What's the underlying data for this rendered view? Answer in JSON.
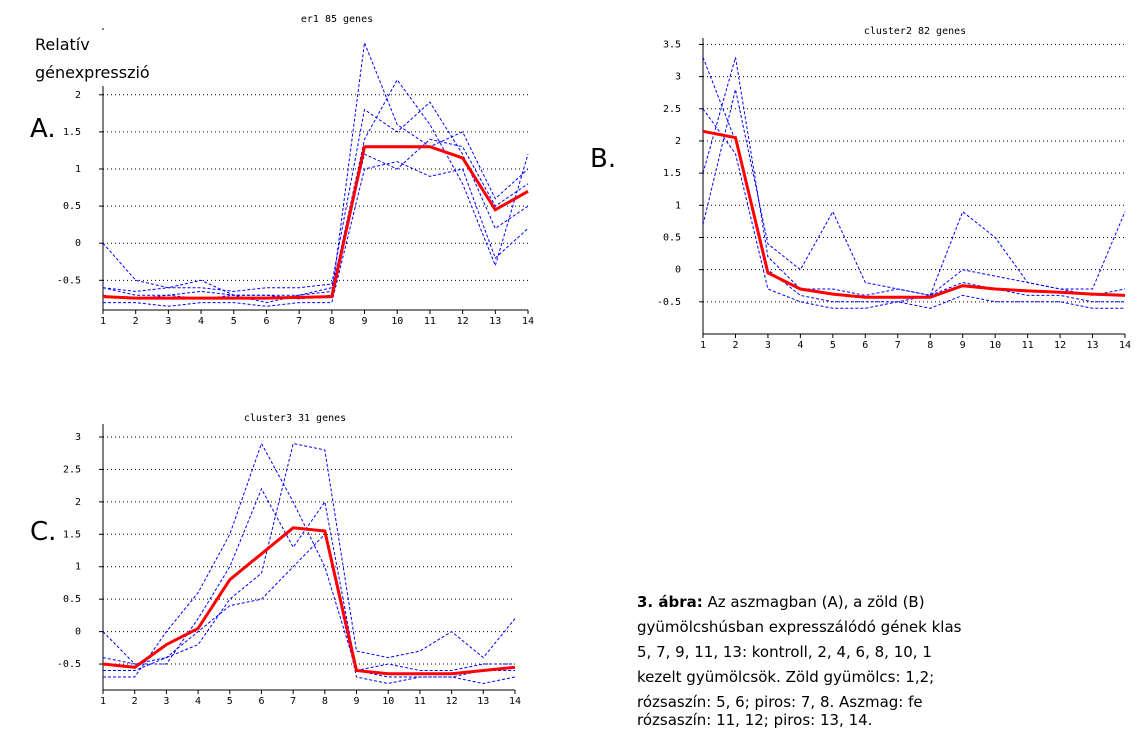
{
  "chart_data": [
    {
      "type": "line",
      "title": "er1  85 genes",
      "x": [
        1,
        2,
        3,
        4,
        5,
        6,
        7,
        8,
        9,
        10,
        11,
        12,
        13,
        14
      ],
      "xticks": [
        1,
        2,
        3,
        4,
        5,
        6,
        7,
        8,
        9,
        10,
        11,
        12,
        13,
        14
      ],
      "xlim": [
        1,
        14
      ],
      "ylim": [
        -0.9,
        2.9
      ],
      "yticks": [
        -0.5,
        0,
        0.5,
        1,
        1.5,
        2
      ],
      "grid": true,
      "series": [
        {
          "color": "#0000ff",
          "values": [
            -0.6,
            -0.65,
            -0.6,
            -0.6,
            -0.65,
            -0.6,
            -0.6,
            -0.55,
            1.8,
            1.5,
            1.9,
            1.2,
            0.2,
            0.5
          ]
        },
        {
          "color": "#0000ff",
          "values": [
            -0.8,
            -0.8,
            -0.85,
            -0.8,
            -0.8,
            -0.85,
            -0.8,
            -0.8,
            1.0,
            1.1,
            0.9,
            1.0,
            -0.2,
            0.2
          ]
        },
        {
          "color": "#0000ff",
          "values": [
            -0.7,
            -0.75,
            -0.7,
            -0.75,
            -0.7,
            -0.7,
            -0.75,
            -0.7,
            2.7,
            1.6,
            1.3,
            1.5,
            0.6,
            1.0
          ]
        },
        {
          "color": "#0000ff",
          "values": [
            -0.6,
            -0.7,
            -0.7,
            -0.65,
            -0.7,
            -0.7,
            -0.7,
            -0.65,
            1.4,
            2.2,
            1.6,
            0.8,
            -0.3,
            1.2
          ]
        },
        {
          "color": "#0000ff",
          "values": [
            0,
            -0.5,
            -0.6,
            -0.5,
            -0.7,
            -0.8,
            -0.7,
            -0.6,
            1.2,
            1.0,
            1.4,
            1.3,
            0.5,
            0.8
          ]
        },
        {
          "color": "#ff0000",
          "values": [
            -0.72,
            -0.74,
            -0.74,
            -0.74,
            -0.74,
            -0.74,
            -0.73,
            -0.72,
            1.3,
            1.3,
            1.3,
            1.15,
            0.45,
            0.7
          ]
        }
      ]
    },
    {
      "type": "line",
      "title": "cluster2  82 genes",
      "x": [
        1,
        2,
        3,
        4,
        5,
        6,
        7,
        8,
        9,
        10,
        11,
        12,
        13,
        14
      ],
      "xticks": [
        1,
        2,
        3,
        4,
        5,
        6,
        7,
        8,
        9,
        10,
        11,
        12,
        13,
        14
      ],
      "xlim": [
        1,
        14
      ],
      "ylim": [
        -1,
        3.6
      ],
      "yticks": [
        -0.5,
        0,
        0.5,
        1,
        1.5,
        2,
        2.5,
        3,
        3.5
      ],
      "grid": true,
      "series": [
        {
          "color": "#0000ff",
          "values": [
            3.3,
            2.0,
            0.0,
            -0.4,
            -0.5,
            -0.5,
            -0.5,
            -0.4,
            -0.2,
            -0.3,
            -0.4,
            -0.4,
            -0.5,
            -0.5
          ]
        },
        {
          "color": "#0000ff",
          "values": [
            1.5,
            3.3,
            0.2,
            -0.3,
            -0.3,
            -0.4,
            -0.3,
            -0.4,
            0.9,
            0.5,
            -0.2,
            -0.3,
            -0.4,
            -0.3
          ]
        },
        {
          "color": "#0000ff",
          "values": [
            2.5,
            1.8,
            -0.3,
            -0.5,
            -0.6,
            -0.6,
            -0.5,
            -0.6,
            -0.4,
            -0.5,
            -0.5,
            -0.5,
            -0.6,
            -0.6
          ]
        },
        {
          "color": "#0000ff",
          "values": [
            0.7,
            2.8,
            0.4,
            0.0,
            0.9,
            -0.2,
            -0.3,
            -0.4,
            0.0,
            -0.1,
            -0.2,
            -0.3,
            -0.3,
            0.9
          ]
        },
        {
          "color": "#ff0000",
          "values": [
            2.15,
            2.05,
            -0.05,
            -0.3,
            -0.38,
            -0.43,
            -0.43,
            -0.43,
            -0.25,
            -0.3,
            -0.33,
            -0.35,
            -0.38,
            -0.4
          ]
        }
      ]
    },
    {
      "type": "line",
      "title": "cluster3  31 genes",
      "x": [
        1,
        2,
        3,
        4,
        5,
        6,
        7,
        8,
        9,
        10,
        11,
        12,
        13,
        14
      ],
      "xticks": [
        1,
        2,
        3,
        4,
        5,
        6,
        7,
        8,
        9,
        10,
        11,
        12,
        13,
        14
      ],
      "xlim": [
        1,
        14
      ],
      "ylim": [
        -0.9,
        3.2
      ],
      "yticks": [
        -0.5,
        0,
        0.5,
        1,
        1.5,
        2,
        2.5,
        3
      ],
      "grid": true,
      "series": [
        {
          "color": "#0000ff",
          "values": [
            -0.7,
            -0.7,
            0.0,
            0.6,
            1.5,
            2.9,
            2.0,
            1.0,
            -0.6,
            -0.7,
            -0.7,
            -0.7,
            -0.6,
            -0.6
          ]
        },
        {
          "color": "#0000ff",
          "values": [
            -0.4,
            -0.5,
            -0.4,
            -0.2,
            0.5,
            0.9,
            2.9,
            2.8,
            -0.3,
            -0.4,
            -0.3,
            0.0,
            -0.4,
            0.2
          ]
        },
        {
          "color": "#0000ff",
          "values": [
            0.0,
            -0.5,
            -0.5,
            0.2,
            1.0,
            2.2,
            1.3,
            2.0,
            -0.6,
            -0.5,
            -0.6,
            -0.6,
            -0.5,
            -0.5
          ]
        },
        {
          "color": "#0000ff",
          "values": [
            -0.6,
            -0.6,
            -0.4,
            0.0,
            0.4,
            0.5,
            1.0,
            1.5,
            -0.7,
            -0.8,
            -0.7,
            -0.7,
            -0.8,
            -0.7
          ]
        },
        {
          "color": "#ff0000",
          "values": [
            -0.5,
            -0.55,
            -0.2,
            0.05,
            0.8,
            1.2,
            1.6,
            1.55,
            -0.6,
            -0.65,
            -0.65,
            -0.65,
            -0.6,
            -0.55
          ]
        }
      ]
    }
  ],
  "panel_labels": [
    "A.",
    "B.",
    "C."
  ],
  "y_label": [
    "Relatív",
    "génexpresszió"
  ],
  "caption": {
    "label": "3. ábra:",
    "lines": [
      " Az aszmagban (A), a zöld (B)",
      "gyümölcshúsban expresszálódó gének klas",
      "5, 7, 9, 11, 13: kontroll, 2, 4, 6, 8, 10, 1",
      "kezelt gyümölcsök. Zöld gyümölcs: 1,2; ",
      "rózsaszín: 5, 6; piros: 7, 8. Aszmag: fe",
      "rózsaszín: 11, 12; piros: 13, 14."
    ]
  }
}
